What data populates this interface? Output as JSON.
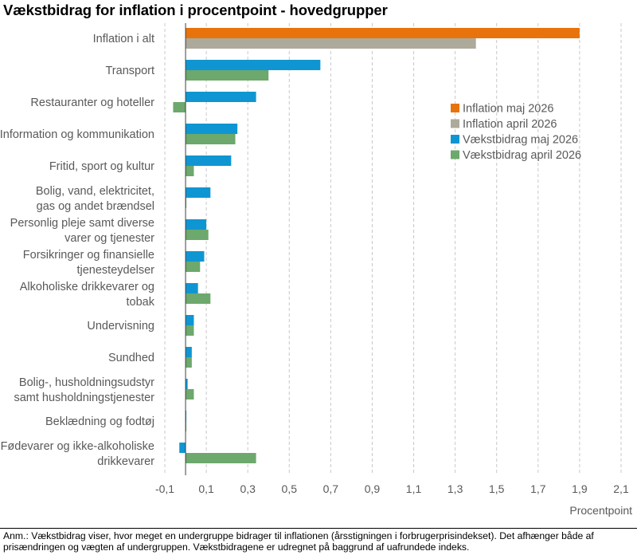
{
  "title": "Vækstbidrag for inflation i procentpoint - hovedgrupper",
  "note": "Anm.: Vækstbidrag viser, hvor meget en undergruppe bidrager til inflationen (årsstigningen i forbrugerprisindekset). Det afhænger både af prisændringen og vægten af undergruppen. Vækstbidragene er udregnet på baggrund af uafrundede indeks.",
  "chart_data": {
    "type": "bar",
    "orientation": "horizontal",
    "title": "Vækstbidrag for inflation i procentpoint - hovedgrupper",
    "xlabel": "Procentpoint",
    "ylabel": "",
    "xlim": [
      -0.1,
      2.1
    ],
    "x_ticks": [
      -0.1,
      0.1,
      0.3,
      0.5,
      0.7,
      0.9,
      1.1,
      1.3,
      1.5,
      1.7,
      1.9,
      2.1
    ],
    "x_tick_labels": [
      "-0,1",
      "0,1",
      "0,3",
      "0,5",
      "0,7",
      "0,9",
      "1,1",
      "1,3",
      "1,5",
      "1,7",
      "1,9",
      "2,1"
    ],
    "grid": "vertical dashed",
    "legend_position": "right, upper middle",
    "categories": [
      "Inflation i alt",
      "Transport",
      "Restauranter og hoteller",
      "Information og kommunikation",
      "Fritid, sport og kultur",
      "Bolig, vand, elektricitet, gas og andet brændsel",
      "Personlig pleje samt diverse varer og tjenester",
      "Forsikringer og finansielle tjenesteydelser",
      "Alkoholiske drikkevarer og tobak",
      "Undervisning",
      "Sundhed",
      "Bolig-, husholdningsudstyr samt husholdningstjenester",
      "Beklædning og fodtøj",
      "Fødevarer og ikke-alkoholiske drikkevarer"
    ],
    "category_label_lines": [
      [
        "Inflation i alt"
      ],
      [
        "Transport"
      ],
      [
        "Restauranter og hoteller"
      ],
      [
        "Information og kommunikation"
      ],
      [
        "Fritid, sport og kultur"
      ],
      [
        "Bolig, vand, elektricitet,",
        "gas og andet brændsel"
      ],
      [
        "Personlig pleje samt diverse",
        "varer og tjenester"
      ],
      [
        "Forsikringer og finansielle",
        "tjenesteydelser"
      ],
      [
        "Alkoholiske drikkevarer og",
        "tobak"
      ],
      [
        "Undervisning"
      ],
      [
        "Sundhed"
      ],
      [
        "Bolig-, husholdningsudstyr",
        "samt husholdningstjenester"
      ],
      [
        "Beklædning og fodtøj"
      ],
      [
        "Fødevarer og ikke-alkoholiske",
        "drikkevarer"
      ]
    ],
    "series": [
      {
        "name": "Inflation maj 2026",
        "color": "#E8730C",
        "slot": 0,
        "values": [
          1.9,
          null,
          null,
          null,
          null,
          null,
          null,
          null,
          null,
          null,
          null,
          null,
          null,
          null
        ]
      },
      {
        "name": "Inflation april 2026",
        "color": "#ADAA9B",
        "slot": 1,
        "values": [
          1.4,
          null,
          null,
          null,
          null,
          null,
          null,
          null,
          null,
          null,
          null,
          null,
          null,
          null
        ]
      },
      {
        "name": "Vækstbidrag maj 2026",
        "color": "#0F96D2",
        "slot": 0,
        "values": [
          null,
          0.65,
          0.34,
          0.25,
          0.22,
          0.12,
          0.1,
          0.09,
          0.06,
          0.04,
          0.03,
          0.01,
          0.0,
          -0.03
        ]
      },
      {
        "name": "Vækstbidrag april 2026",
        "color": "#6DA86D",
        "slot": 1,
        "values": [
          null,
          0.4,
          -0.06,
          0.24,
          0.04,
          0.0,
          0.11,
          0.07,
          0.12,
          0.04,
          0.03,
          0.04,
          0.0,
          0.34
        ]
      }
    ]
  }
}
